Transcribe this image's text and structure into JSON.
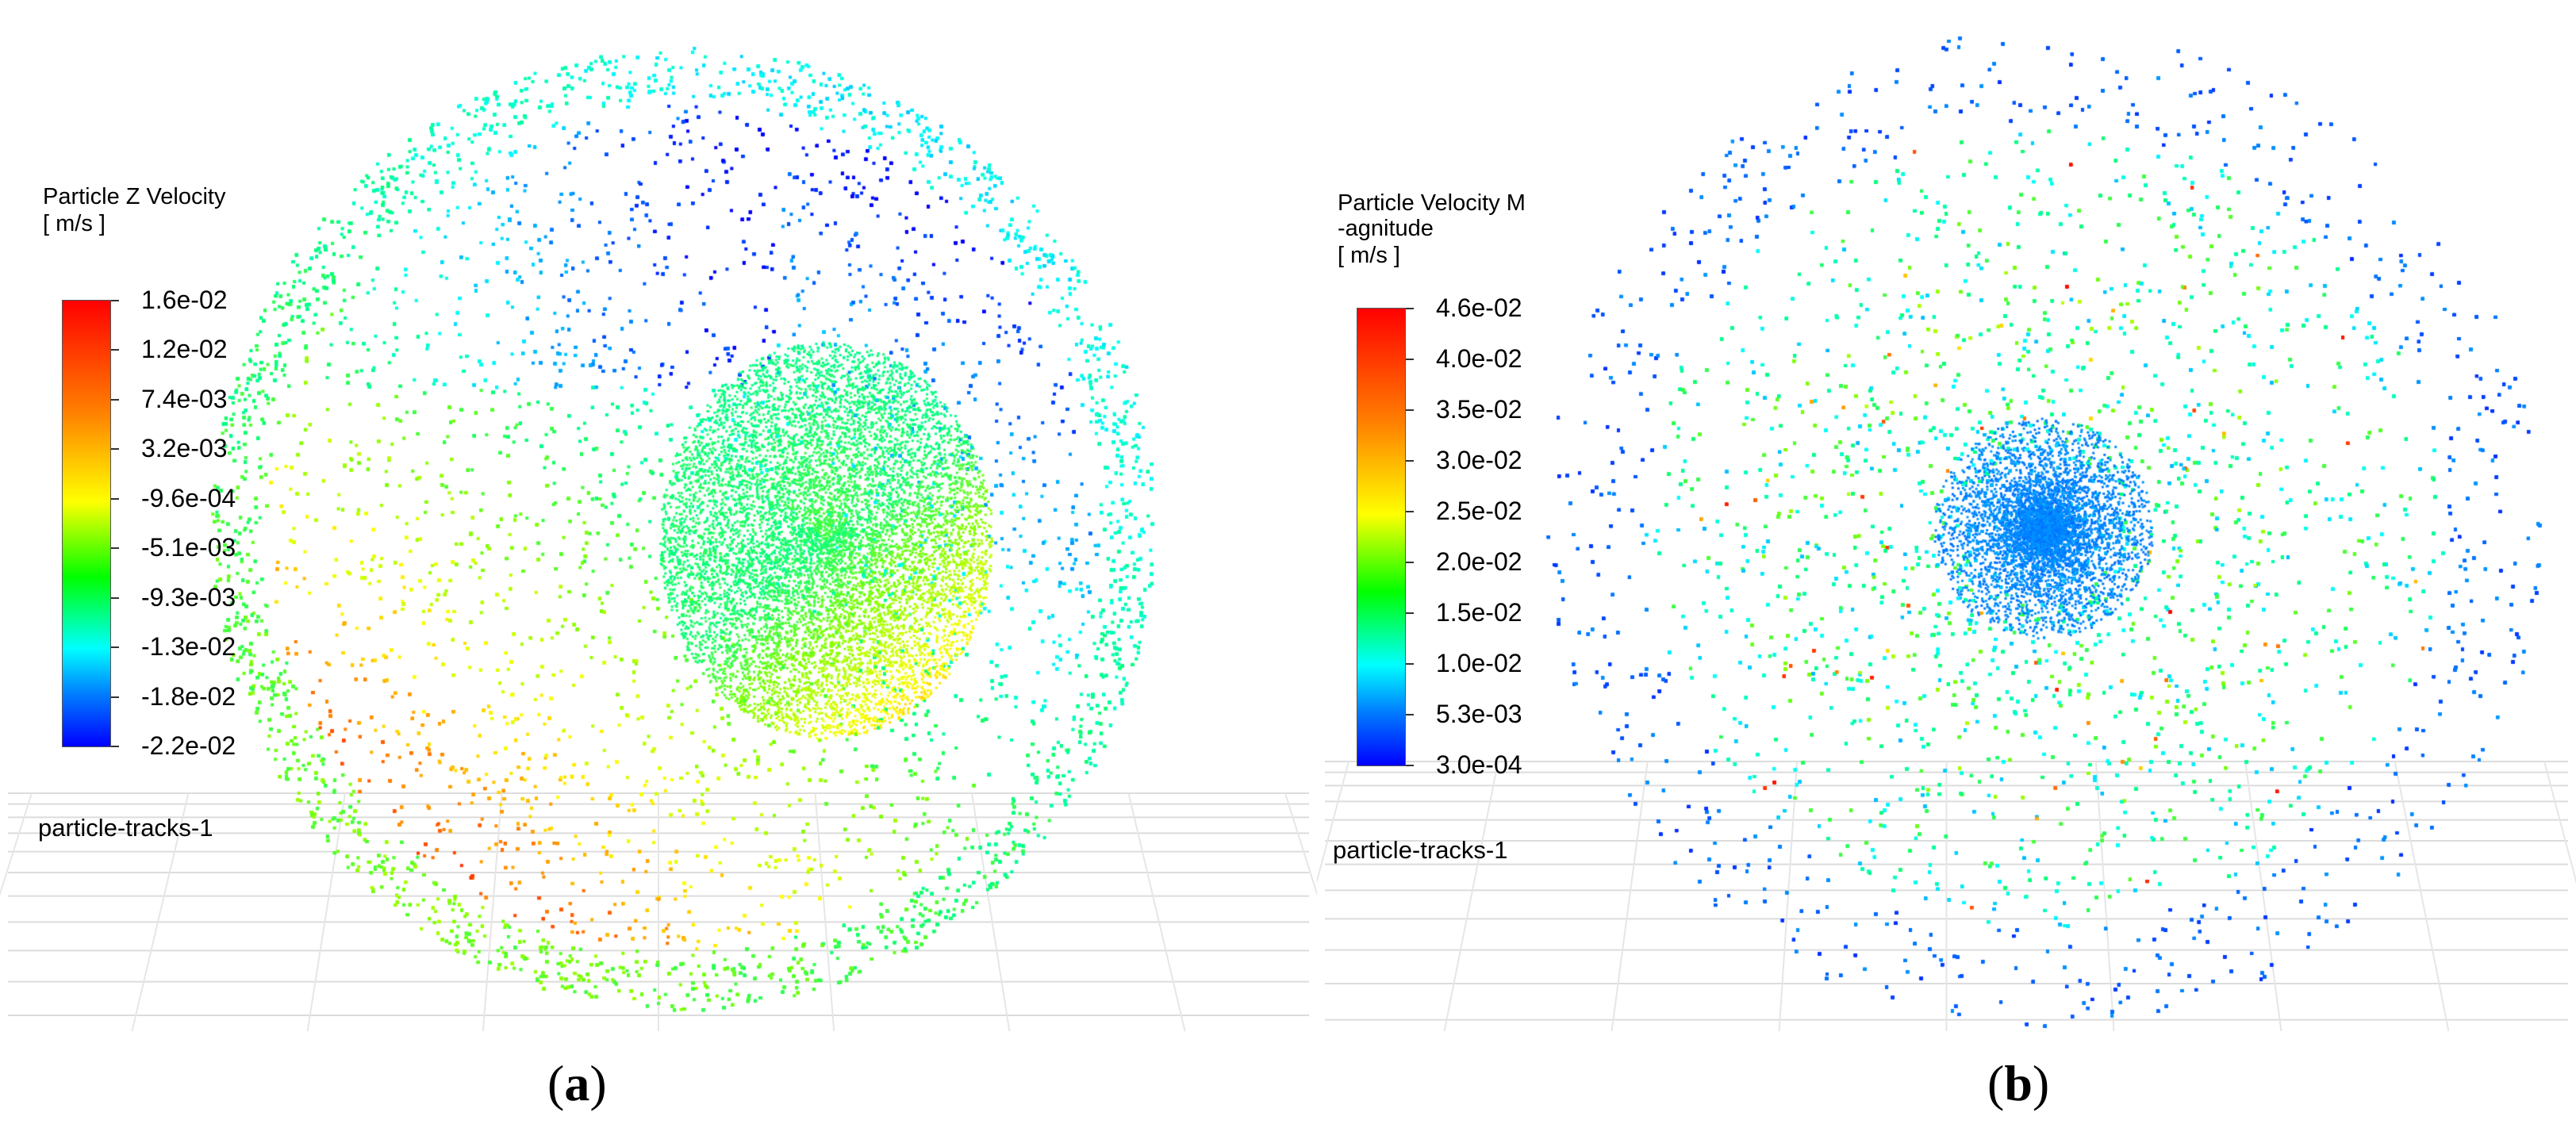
{
  "panels": {
    "a": {
      "legend_title": "Particle Z Velocity",
      "legend_unit": "[ m/s ]",
      "ticks": [
        "1.6e-02",
        "1.2e-02",
        "7.4e-03",
        "3.2e-03",
        "-9.6e-04",
        "-5.1e-03",
        "-9.3e-03",
        "-1.3e-02",
        "-1.8e-02",
        "-2.2e-02"
      ],
      "track_label": "particle-tracks-1",
      "caption_prefix": "(",
      "caption_letter": "a",
      "caption_suffix": ")"
    },
    "b": {
      "legend_title": "Particle Velocity M\n-agnitude",
      "legend_unit": "[ m/s ]",
      "ticks": [
        "4.6e-02",
        "4.0e-02",
        "3.5e-02",
        "3.0e-02",
        "2.5e-02",
        "2.0e-02",
        "1.5e-02",
        "1.0e-02",
        "5.3e-03",
        "3.0e-04"
      ],
      "track_label": "particle-tracks-1",
      "caption_prefix": "(",
      "caption_letter": "b",
      "caption_suffix": ")"
    }
  },
  "colors": {
    "colormap": [
      "#0000ff",
      "#0080ff",
      "#00ffff",
      "#00ff80",
      "#80ff00",
      "#ffff00",
      "#ff8000",
      "#ff0000"
    ]
  }
}
